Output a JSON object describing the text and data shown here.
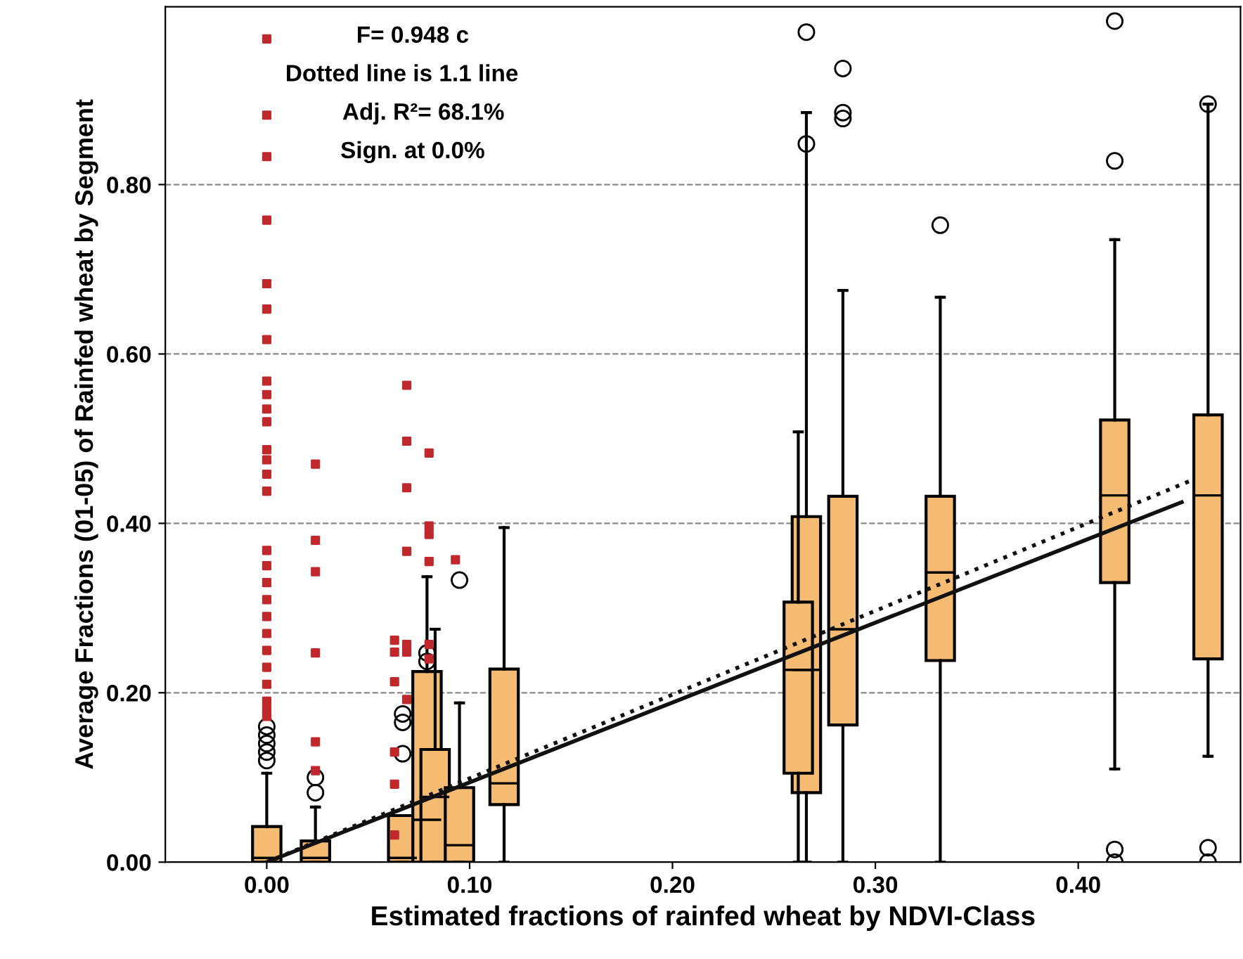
{
  "chart_data": {
    "type": "box",
    "xlabel": "Estimated fractions of rainfed wheat by NDVI-Class",
    "ylabel": "Average Fractions (01-05) of Rainfed wheat by Segment",
    "xlim": [
      -0.05,
      0.48
    ],
    "ylim": [
      0,
      1.01
    ],
    "xticks": [
      {
        "value": 0,
        "label": "0.00"
      },
      {
        "value": 0.1,
        "label": "0.10"
      },
      {
        "value": 0.2,
        "label": "0.20"
      },
      {
        "value": 0.3,
        "label": "0.30"
      },
      {
        "value": 0.4,
        "label": "0.40"
      }
    ],
    "yticks": [
      {
        "value": 0,
        "label": "0.00"
      },
      {
        "value": 0.2,
        "label": "0.20"
      },
      {
        "value": 0.4,
        "label": "0.40"
      },
      {
        "value": 0.6,
        "label": "0.60"
      },
      {
        "value": 0.8,
        "label": "0.80"
      }
    ],
    "grid": "y",
    "series": [
      {
        "color": "#f5bb73",
        "x": [
          0.0,
          0.024,
          0.067,
          0.079,
          0.083,
          0.095,
          0.117,
          0.266,
          0.262,
          0.284,
          0.332,
          0.418,
          0.464
        ],
        "boxes": [
          {
            "low": 0,
            "q1": 0,
            "median": 0.005,
            "q3": 0.042,
            "high": 0.105,
            "outliers": [
              0.12,
              0.13,
              0.14,
              0.15,
              0.16
            ]
          },
          {
            "low": 0,
            "q1": 0,
            "median": 0.005,
            "q3": 0.025,
            "high": 0.065,
            "outliers": [
              0.082,
              0.1
            ]
          },
          {
            "low": 0,
            "q1": 0,
            "median": 0.005,
            "q3": 0.055,
            "high": 0.055,
            "outliers": [
              0.128,
              0.165,
              0.175
            ]
          },
          {
            "low": 0,
            "q1": 0,
            "median": 0.05,
            "q3": 0.225,
            "high": 0.337,
            "outliers": [
              0.237,
              0.247
            ]
          },
          {
            "low": 0,
            "q1": 0,
            "median": 0.077,
            "q3": 0.133,
            "high": 0.275
          },
          {
            "low": 0,
            "q1": 0,
            "median": 0.02,
            "q3": 0.088,
            "high": 0.188,
            "outliers": [
              0.333
            ]
          },
          {
            "low": 0,
            "q1": 0.068,
            "median": 0.093,
            "q3": 0.228,
            "high": 0.395
          },
          {
            "low": 0,
            "q1": 0.082,
            "median": 0.227,
            "q3": 0.408,
            "high": 0.885,
            "outliers": [
              0.848,
              0.98
            ]
          },
          {
            "low": 0,
            "q1": 0.105,
            "median": 0.227,
            "q3": 0.307,
            "high": 0.508
          },
          {
            "low": 0,
            "q1": 0.162,
            "median": 0.275,
            "q3": 0.432,
            "high": 0.675,
            "outliers": [
              0.878,
              0.885,
              0.937
            ]
          },
          {
            "low": 0,
            "q1": 0.238,
            "median": 0.342,
            "q3": 0.432,
            "high": 0.667,
            "outliers": [
              0.752
            ]
          },
          {
            "low": 0.11,
            "q1": 0.33,
            "median": 0.433,
            "q3": 0.522,
            "high": 0.735,
            "outliers": [
              0,
              0.015,
              0.828,
              0.993
            ]
          },
          {
            "low": 0.125,
            "q1": 0.24,
            "median": 0.433,
            "q3": 0.528,
            "high": 0.895,
            "outliers": [
              0,
              0.017,
              0.895
            ]
          }
        ]
      },
      {
        "type": "scatter",
        "color": "#c0282c",
        "marker": "square",
        "x": [
          0,
          0,
          0,
          0,
          0,
          0,
          0,
          0,
          0,
          0,
          0,
          0,
          0,
          0,
          0,
          0,
          0,
          0,
          0,
          0,
          0,
          0,
          0,
          0,
          0,
          0,
          0,
          0.024,
          0.024,
          0.024,
          0.024,
          0.024,
          0.024,
          0.069,
          0.069,
          0.069,
          0.069,
          0.069,
          0.069,
          0.069,
          0.08,
          0.08,
          0.08,
          0.08,
          0.08,
          0.08,
          0.063,
          0.063,
          0.063,
          0.063,
          0.063,
          0.063,
          0.093
        ],
        "values": [
          0.972,
          0.882,
          0.833,
          0.758,
          0.683,
          0.653,
          0.617,
          0.568,
          0.552,
          0.535,
          0.52,
          0.487,
          0.475,
          0.458,
          0.438,
          0.368,
          0.35,
          0.33,
          0.31,
          0.29,
          0.27,
          0.25,
          0.23,
          0.21,
          0.19,
          0.172,
          0.18,
          0.47,
          0.38,
          0.343,
          0.247,
          0.142,
          0.108,
          0.563,
          0.497,
          0.442,
          0.367,
          0.257,
          0.248,
          0.192,
          0.483,
          0.397,
          0.387,
          0.355,
          0.257,
          0.24,
          0.262,
          0.248,
          0.213,
          0.13,
          0.092,
          0.032,
          0.357
        ]
      },
      {
        "type": "line",
        "color": "#111111",
        "line_style": "solid",
        "x": [
          0,
          0.451
        ],
        "values": [
          0,
          0.425
        ]
      },
      {
        "type": "line",
        "color": "#111111",
        "line_style": "dotted",
        "x": [
          0,
          0.455
        ],
        "values": [
          0,
          0.45
        ]
      }
    ],
    "annotations": [
      "F= 0.948 c",
      "Dotted line is 1.1 line",
      "Adj. R²= 68.1%",
      "Sign. at 0.0%"
    ]
  }
}
